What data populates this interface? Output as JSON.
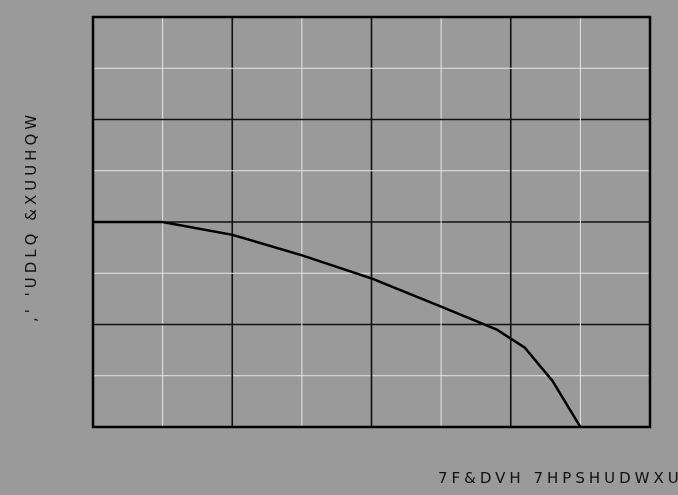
{
  "chart_data": {
    "type": "line",
    "title": "",
    "xlabel": "7F&DVH 7HPSHUDWXUH",
    "ylabel": ",'  'UDLQ &XUUHQW",
    "xlim": [
      0,
      8
    ],
    "ylim": [
      0,
      8
    ],
    "grid": true,
    "series": [
      {
        "values": [
          [
            0.0,
            4.0
          ],
          [
            1.0,
            4.0
          ],
          [
            2.0,
            3.75
          ],
          [
            3.0,
            3.35
          ],
          [
            4.0,
            2.9
          ],
          [
            5.0,
            2.35
          ],
          [
            5.8,
            1.9
          ],
          [
            6.2,
            1.55
          ],
          [
            6.6,
            0.9
          ],
          [
            7.0,
            0.0
          ]
        ]
      }
    ]
  },
  "colors": {
    "background": "#9a9a9a",
    "grid_major": "#111111",
    "grid_minor": "#e6e6e6",
    "line": "#000000"
  }
}
